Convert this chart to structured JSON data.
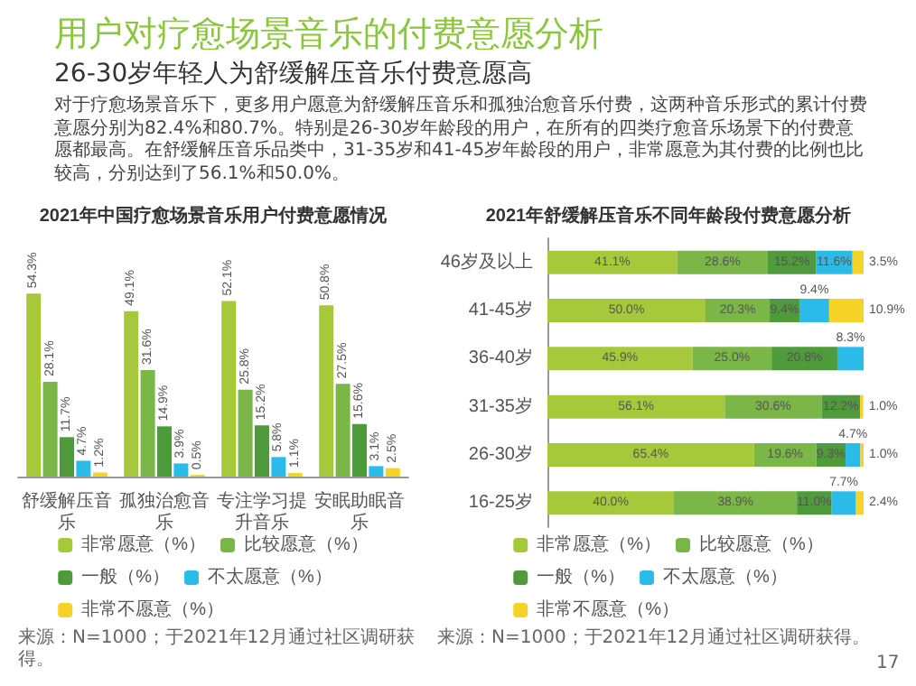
{
  "chart_data": [
    {
      "type": "other",
      "title": "用户对疗愈场景音乐的付费意愿分析",
      "subtitle": "26-30岁年轻人为舒缓解压音乐付费意愿高",
      "annotations": [
        "对于疗愈场景音乐下，更多用户愿意为舒缓解压音乐和孤独治愈音乐付费，这两种音乐形式的累计付费意愿分别为82.4%和80.7%。特别是26-30岁年龄段的用户，在所有的四类疗愈音乐场景下的付费意愿都最高。在舒缓解压音乐品类中，31-35岁和41-45岁年龄段的用户，非常愿意为其付费的比例也比较高，分别达到了56.1%和50.0%。",
        "17"
      ]
    },
    {
      "type": "bar",
      "title": "2021年中国疗愈场景音乐用户付费意愿情况",
      "categories": [
        "舒缓解压音乐",
        "孤独治愈音乐",
        "专注学习提升音乐",
        "安眠助眠音乐"
      ],
      "series": [
        {
          "name": "非常愿意（%）",
          "color": "#a5c93b",
          "values": [
            54.3,
            49.1,
            52.1,
            50.8
          ],
          "value_labels": [
            "54.3%",
            "49.1%",
            "52.1%",
            "50.8%"
          ]
        },
        {
          "name": "比较愿意（%）",
          "color": "#7ab648",
          "values": [
            28.1,
            31.6,
            25.8,
            27.5
          ],
          "value_labels": [
            "28.1%",
            "31.6%",
            "25.8%",
            "27.5%"
          ]
        },
        {
          "name": "一般（%）",
          "color": "#4f9a3a",
          "values": [
            11.7,
            14.9,
            15.2,
            15.6
          ],
          "value_labels": [
            "11.7%",
            "14.9%",
            "15.2%",
            "15.6%"
          ]
        },
        {
          "name": "不太愿意（%）",
          "color": "#2bbbe8",
          "values": [
            4.7,
            3.9,
            5.8,
            3.1
          ],
          "value_labels": [
            "4.7%",
            "3.9%",
            "5.8%",
            "3.1%"
          ]
        },
        {
          "name": "非常不愿意（%）",
          "color": "#f5d327",
          "values": [
            1.2,
            0.5,
            1.1,
            2.5
          ],
          "value_labels": [
            "1.2%",
            "0.5%",
            "1.1%",
            "2.5%"
          ]
        }
      ],
      "legend": "bottom",
      "tick_labels": "x",
      "annotations": [
        "来源：N=1000；于2021年12月通过社区调研获得。"
      ]
    },
    {
      "type": "bar",
      "orientation": "horizontal",
      "stacked": true,
      "title": "2021年舒缓解压音乐不同年龄段付费意愿分析",
      "categories": [
        "46岁及以上",
        "41-45岁",
        "36-40岁",
        "31-35岁",
        "26-30岁",
        "16-25岁"
      ],
      "series": [
        {
          "name": "非常愿意（%）",
          "color": "#a5c93b",
          "values": [
            41.1,
            50.0,
            45.9,
            56.1,
            65.4,
            40.0
          ],
          "value_labels": [
            "41.1%",
            "50.0%",
            "45.9%",
            "56.1%",
            "65.4%",
            "40.0%"
          ]
        },
        {
          "name": "比较愿意（%）",
          "color": "#7ab648",
          "values": [
            28.6,
            20.3,
            25.0,
            30.6,
            19.6,
            38.9
          ],
          "value_labels": [
            "28.6%",
            "20.3%",
            "25.0%",
            "30.6%",
            "19.6%",
            "38.9%"
          ]
        },
        {
          "name": "一般（%）",
          "color": "#4f9a3a",
          "values": [
            15.2,
            9.4,
            20.8,
            12.2,
            9.3,
            11.0
          ],
          "value_labels": [
            "15.2%",
            "9.4%",
            "20.8%",
            "12.2%",
            "9.3%",
            "11.0%"
          ]
        },
        {
          "name": "不太愿意（%）",
          "color": "#2bbbe8",
          "values": [
            11.6,
            9.4,
            8.3,
            null,
            4.7,
            7.7
          ],
          "value_labels": [
            "11.6%",
            "9.4%",
            "8.3%",
            null,
            "4.7%",
            "7.7%"
          ]
        },
        {
          "name": "非常不愿意（%）",
          "color": "#f5d327",
          "values": [
            3.5,
            10.9,
            null,
            1.0,
            1.0,
            2.4
          ],
          "value_labels": [
            "3.5%",
            "10.9%",
            null,
            "1.0%",
            "1.0%",
            "2.4%"
          ]
        }
      ],
      "legend": "bottom",
      "tick_labels": "y",
      "annotations": [
        "来源：N=1000；于2021年12月通过社区调研获得。"
      ]
    }
  ]
}
